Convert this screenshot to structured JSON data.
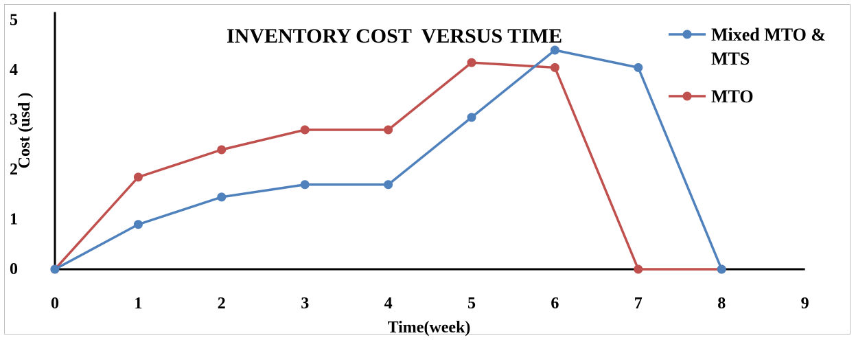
{
  "chart_data": {
    "type": "line",
    "title": "INVENTORY COST  VERSUS TIME",
    "xlabel": "Time(week)",
    "ylabel": "Cost (usd )",
    "xlim": [
      0,
      9
    ],
    "ylim": [
      0,
      5
    ],
    "xticks": [
      "0",
      "1",
      "2",
      "3",
      "4",
      "5",
      "6",
      "7",
      "8",
      "9"
    ],
    "yticks": [
      "0",
      "1",
      "2",
      "3",
      "4",
      "5"
    ],
    "grid": false,
    "legend_position": "top-right",
    "series": [
      {
        "name": "Mixed MTO & MTS",
        "legend_lines": [
          "Mixed MTO &",
          "MTS"
        ],
        "color": "#4f81bd",
        "x": [
          0,
          1,
          2,
          3,
          4,
          5,
          6,
          7,
          8
        ],
        "y": [
          0,
          0.9,
          1.45,
          1.7,
          1.7,
          3.05,
          4.4,
          4.05,
          0
        ]
      },
      {
        "name": "MTO",
        "legend_lines": [
          "MTO"
        ],
        "color": "#c0504d",
        "x": [
          0,
          1,
          2,
          3,
          4,
          5,
          6,
          7,
          8
        ],
        "y": [
          0,
          1.85,
          2.4,
          2.8,
          2.8,
          4.15,
          4.05,
          0,
          0
        ]
      }
    ]
  }
}
